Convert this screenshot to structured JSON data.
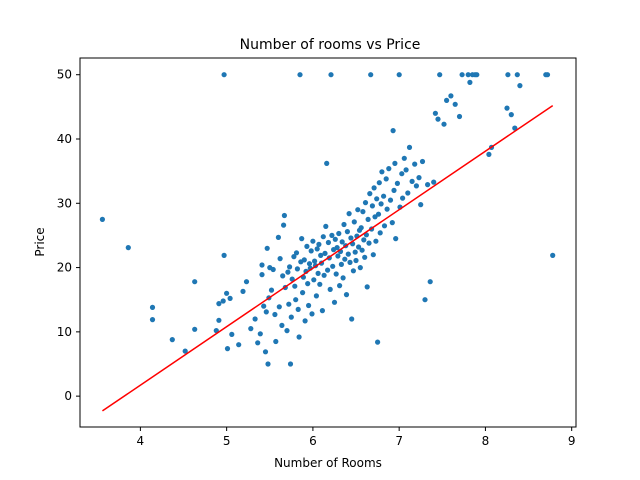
{
  "chart_data": {
    "type": "scatter",
    "title": "Number of rooms vs Price",
    "xlabel": "Number of Rooms",
    "ylabel": "Price",
    "xlim": [
      3.3,
      9.05
    ],
    "ylim": [
      -4.8,
      52.6
    ],
    "xticks": [
      4,
      5,
      6,
      7,
      8,
      9
    ],
    "yticks": [
      0,
      10,
      20,
      30,
      40,
      50
    ],
    "grid": false,
    "colors": {
      "points": "#1f77b4",
      "fit_line": "#ff0000",
      "axes": "#000000"
    },
    "fit_line": {
      "x": [
        3.56,
        8.78
      ],
      "y": [
        -2.3,
        45.2
      ]
    },
    "series": [
      {
        "points": [
          [
            3.56,
            27.5
          ],
          [
            3.86,
            23.1
          ],
          [
            4.14,
            13.8
          ],
          [
            4.14,
            11.9
          ],
          [
            4.37,
            8.8
          ],
          [
            4.52,
            7.0
          ],
          [
            4.63,
            10.4
          ],
          [
            4.63,
            17.8
          ],
          [
            4.88,
            10.2
          ],
          [
            4.91,
            11.8
          ],
          [
            4.91,
            14.4
          ],
          [
            4.96,
            14.8
          ],
          [
            4.97,
            50.0
          ],
          [
            4.97,
            21.9
          ],
          [
            5.0,
            16.0
          ],
          [
            5.01,
            7.4
          ],
          [
            5.04,
            15.2
          ],
          [
            5.06,
            9.6
          ],
          [
            5.14,
            8.0
          ],
          [
            5.19,
            16.3
          ],
          [
            5.23,
            17.8
          ],
          [
            5.28,
            10.5
          ],
          [
            5.33,
            12.0
          ],
          [
            5.36,
            8.3
          ],
          [
            5.39,
            9.7
          ],
          [
            5.41,
            20.4
          ],
          [
            5.41,
            18.9
          ],
          [
            5.43,
            14.0
          ],
          [
            5.45,
            6.9
          ],
          [
            5.46,
            13.1
          ],
          [
            5.47,
            23.0
          ],
          [
            5.48,
            5.0
          ],
          [
            5.49,
            15.3
          ],
          [
            5.5,
            20.0
          ],
          [
            5.52,
            16.5
          ],
          [
            5.54,
            19.7
          ],
          [
            5.56,
            12.7
          ],
          [
            5.57,
            8.5
          ],
          [
            5.6,
            24.7
          ],
          [
            5.61,
            13.9
          ],
          [
            5.62,
            21.4
          ],
          [
            5.64,
            11.0
          ],
          [
            5.65,
            18.7
          ],
          [
            5.66,
            26.6
          ],
          [
            5.67,
            28.1
          ],
          [
            5.68,
            16.9
          ],
          [
            5.7,
            10.2
          ],
          [
            5.71,
            19.3
          ],
          [
            5.72,
            14.3
          ],
          [
            5.73,
            20.1
          ],
          [
            5.74,
            5.0
          ],
          [
            5.75,
            12.3
          ],
          [
            5.76,
            18.2
          ],
          [
            5.78,
            21.7
          ],
          [
            5.79,
            17.1
          ],
          [
            5.8,
            15.0
          ],
          [
            5.81,
            22.3
          ],
          [
            5.82,
            19.8
          ],
          [
            5.83,
            13.5
          ],
          [
            5.84,
            9.2
          ],
          [
            5.85,
            50.0
          ],
          [
            5.86,
            20.9
          ],
          [
            5.87,
            24.5
          ],
          [
            5.88,
            16.1
          ],
          [
            5.89,
            18.5
          ],
          [
            5.9,
            21.2
          ],
          [
            5.91,
            11.7
          ],
          [
            5.92,
            19.4
          ],
          [
            5.93,
            23.3
          ],
          [
            5.94,
            17.5
          ],
          [
            5.95,
            14.1
          ],
          [
            5.96,
            20.6
          ],
          [
            5.97,
            19.9
          ],
          [
            5.98,
            22.6
          ],
          [
            5.99,
            12.8
          ],
          [
            6.0,
            24.1
          ],
          [
            6.01,
            18.1
          ],
          [
            6.02,
            21.0
          ],
          [
            6.03,
            20.3
          ],
          [
            6.04,
            15.6
          ],
          [
            6.05,
            22.9
          ],
          [
            6.06,
            19.1
          ],
          [
            6.07,
            23.6
          ],
          [
            6.08,
            17.4
          ],
          [
            6.09,
            21.9
          ],
          [
            6.1,
            20.7
          ],
          [
            6.11,
            13.3
          ],
          [
            6.12,
            24.8
          ],
          [
            6.13,
            18.8
          ],
          [
            6.14,
            22.2
          ],
          [
            6.15,
            26.4
          ],
          [
            6.16,
            36.2
          ],
          [
            6.17,
            19.6
          ],
          [
            6.18,
            23.9
          ],
          [
            6.19,
            21.5
          ],
          [
            6.2,
            16.6
          ],
          [
            6.21,
            50.0
          ],
          [
            6.22,
            25.0
          ],
          [
            6.23,
            20.2
          ],
          [
            6.24,
            22.8
          ],
          [
            6.25,
            14.6
          ],
          [
            6.26,
            24.4
          ],
          [
            6.27,
            19.0
          ],
          [
            6.28,
            23.1
          ],
          [
            6.29,
            21.8
          ],
          [
            6.3,
            25.3
          ],
          [
            6.31,
            17.2
          ],
          [
            6.32,
            22.5
          ],
          [
            6.33,
            20.5
          ],
          [
            6.34,
            24.0
          ],
          [
            6.35,
            18.4
          ],
          [
            6.36,
            26.7
          ],
          [
            6.37,
            21.3
          ],
          [
            6.38,
            23.4
          ],
          [
            6.39,
            15.8
          ],
          [
            6.4,
            25.6
          ],
          [
            6.41,
            22.1
          ],
          [
            6.42,
            28.4
          ],
          [
            6.43,
            20.8
          ],
          [
            6.44,
            24.6
          ],
          [
            6.45,
            12.0
          ],
          [
            6.46,
            23.7
          ],
          [
            6.47,
            19.5
          ],
          [
            6.48,
            27.1
          ],
          [
            6.49,
            22.4
          ],
          [
            6.5,
            21.1
          ],
          [
            6.51,
            24.9
          ],
          [
            6.52,
            29.0
          ],
          [
            6.53,
            23.2
          ],
          [
            6.54,
            25.8
          ],
          [
            6.55,
            20.0
          ],
          [
            6.56,
            26.2
          ],
          [
            6.57,
            22.7
          ],
          [
            6.58,
            28.7
          ],
          [
            6.59,
            24.3
          ],
          [
            6.6,
            21.6
          ],
          [
            6.61,
            30.1
          ],
          [
            6.62,
            25.1
          ],
          [
            6.63,
            17.0
          ],
          [
            6.64,
            27.5
          ],
          [
            6.65,
            23.8
          ],
          [
            6.66,
            31.5
          ],
          [
            6.67,
            50.0
          ],
          [
            6.68,
            26.0
          ],
          [
            6.69,
            29.6
          ],
          [
            6.7,
            22.0
          ],
          [
            6.71,
            32.4
          ],
          [
            6.72,
            27.9
          ],
          [
            6.73,
            24.1
          ],
          [
            6.74,
            30.7
          ],
          [
            6.75,
            8.4
          ],
          [
            6.76,
            28.3
          ],
          [
            6.77,
            33.2
          ],
          [
            6.78,
            25.4
          ],
          [
            6.79,
            29.9
          ],
          [
            6.8,
            34.9
          ],
          [
            6.82,
            31.1
          ],
          [
            6.83,
            26.5
          ],
          [
            6.85,
            33.8
          ],
          [
            6.86,
            29.1
          ],
          [
            6.88,
            35.4
          ],
          [
            6.9,
            30.5
          ],
          [
            6.92,
            27.0
          ],
          [
            6.93,
            41.3
          ],
          [
            6.94,
            32.0
          ],
          [
            6.95,
            36.2
          ],
          [
            6.96,
            24.5
          ],
          [
            6.98,
            33.1
          ],
          [
            7.0,
            50.0
          ],
          [
            7.01,
            29.4
          ],
          [
            7.03,
            34.6
          ],
          [
            7.04,
            30.8
          ],
          [
            7.06,
            37.0
          ],
          [
            7.08,
            35.2
          ],
          [
            7.1,
            31.6
          ],
          [
            7.12,
            38.7
          ],
          [
            7.15,
            33.4
          ],
          [
            7.18,
            36.1
          ],
          [
            7.2,
            32.7
          ],
          [
            7.23,
            34.0
          ],
          [
            7.25,
            29.8
          ],
          [
            7.27,
            36.5
          ],
          [
            7.3,
            15.0
          ],
          [
            7.33,
            32.9
          ],
          [
            7.36,
            17.8
          ],
          [
            7.4,
            33.3
          ],
          [
            7.42,
            44.0
          ],
          [
            7.45,
            43.1
          ],
          [
            7.47,
            50.0
          ],
          [
            7.52,
            42.3
          ],
          [
            7.55,
            46.0
          ],
          [
            7.6,
            46.7
          ],
          [
            7.65,
            45.4
          ],
          [
            7.7,
            43.5
          ],
          [
            7.73,
            50.0
          ],
          [
            7.8,
            50.0
          ],
          [
            7.82,
            48.8
          ],
          [
            7.85,
            50.0
          ],
          [
            7.88,
            50.0
          ],
          [
            7.9,
            50.0
          ],
          [
            8.04,
            37.6
          ],
          [
            8.07,
            38.7
          ],
          [
            8.25,
            44.8
          ],
          [
            8.26,
            50.0
          ],
          [
            8.3,
            43.8
          ],
          [
            8.34,
            41.7
          ],
          [
            8.37,
            50.0
          ],
          [
            8.4,
            48.3
          ],
          [
            8.7,
            50.0
          ],
          [
            8.72,
            50.0
          ],
          [
            8.78,
            21.9
          ]
        ]
      }
    ]
  }
}
